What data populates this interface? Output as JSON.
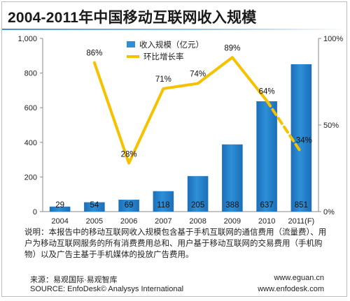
{
  "title": "2004-2011年中国移动互联网收入规模",
  "note": "说明：本报告中的移动互联网收入规模包含基于手机互联网的通信费用（流量费）、用户为移动互联网服务的所有消费费用总和、用户基于移动互联网的交易费用（手机购物）以及广告主基于手机媒体的投放广告费用。",
  "source_cn": "来源：易观国际·易观智库",
  "source_en": "SOURCE: EnfoDesk© Analysys International",
  "url_1": "www.eguan.cn",
  "url_2": "www.enfodesk.com",
  "colors": {
    "bar": "#2e8fd8",
    "line": "#f5c200",
    "axis": "#888888"
  },
  "chart_data": {
    "type": "bar",
    "categories": [
      "2004",
      "2005",
      "2006",
      "2007",
      "2008",
      "2009",
      "2010",
      "2011(F)"
    ],
    "series": [
      {
        "name": "收入规模（亿元）",
        "type": "bar",
        "axis": "left",
        "values": [
          29,
          54,
          69,
          118,
          205,
          388,
          637,
          851
        ],
        "labels": [
          "29",
          "54",
          "69",
          "118",
          "205",
          "388",
          "637",
          "851"
        ]
      },
      {
        "name": "环比增长率",
        "type": "line",
        "axis": "right",
        "x": [
          "2005",
          "2006",
          "2007",
          "2008",
          "2009",
          "2010",
          "2011(F)"
        ],
        "values": [
          86,
          28,
          71,
          74,
          89,
          64,
          34
        ],
        "labels": [
          "86%",
          "28%",
          "71%",
          "74%",
          "89%",
          "64%",
          "34%"
        ],
        "dashed_last_segment": true
      }
    ],
    "left_axis": {
      "ylim": [
        0,
        1000
      ],
      "ticks": [
        "0",
        "200",
        "400",
        "600",
        "800",
        "1,000"
      ]
    },
    "right_axis": {
      "ylim": [
        0,
        100
      ],
      "ticks": [
        "0%",
        "50%",
        "100%"
      ]
    },
    "grid": false,
    "legend_position": "top-left"
  }
}
